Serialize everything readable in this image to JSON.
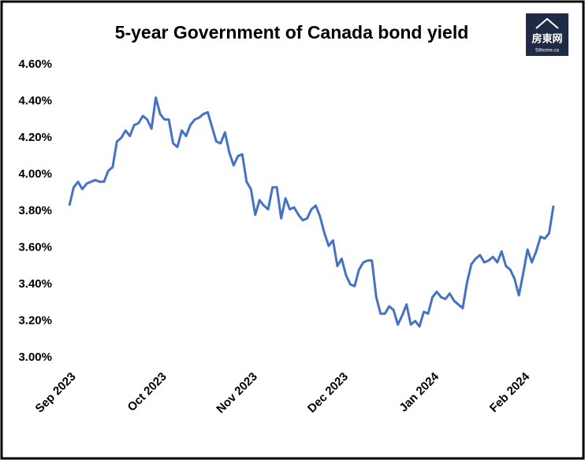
{
  "chart_data": {
    "type": "line",
    "title": "5-year Government of Canada bond yield",
    "logo": {
      "name": "房東网",
      "site": "58home.ca"
    },
    "color": "#4472c4",
    "categories": [
      "Sep 2023",
      null,
      null,
      null,
      null,
      null,
      null,
      null,
      null,
      null,
      null,
      null,
      null,
      null,
      null,
      null,
      null,
      null,
      null,
      null,
      null,
      "Oct 2023",
      null,
      null,
      null,
      null,
      null,
      null,
      null,
      null,
      null,
      null,
      null,
      null,
      null,
      null,
      null,
      null,
      null,
      null,
      null,
      null,
      "Nov 2023",
      null,
      null,
      null,
      null,
      null,
      null,
      null,
      null,
      null,
      null,
      null,
      null,
      null,
      null,
      null,
      null,
      null,
      null,
      null,
      null,
      "Dec 2023",
      null,
      null,
      null,
      null,
      null,
      null,
      null,
      null,
      null,
      null,
      null,
      null,
      null,
      null,
      null,
      null,
      null,
      null,
      null,
      null,
      "Jan 2024",
      null,
      null,
      null,
      null,
      null,
      null,
      null,
      null,
      null,
      null,
      null,
      null,
      null,
      null,
      null,
      null,
      null,
      null,
      null,
      null,
      "Feb 2024",
      null,
      null,
      null,
      null,
      null,
      null,
      null
    ],
    "values": [
      3.83,
      3.93,
      3.96,
      3.92,
      3.95,
      3.96,
      3.97,
      3.96,
      3.96,
      4.02,
      4.04,
      4.18,
      4.2,
      4.24,
      4.21,
      4.27,
      4.28,
      4.32,
      4.3,
      4.25,
      4.42,
      4.33,
      4.3,
      4.3,
      4.17,
      4.15,
      4.24,
      4.21,
      4.27,
      4.3,
      4.31,
      4.33,
      4.34,
      4.26,
      4.18,
      4.17,
      4.23,
      4.12,
      4.05,
      4.1,
      4.11,
      3.96,
      3.92,
      3.78,
      3.86,
      3.83,
      3.81,
      3.93,
      3.93,
      3.76,
      3.87,
      3.81,
      3.82,
      3.78,
      3.75,
      3.76,
      3.81,
      3.83,
      3.77,
      3.68,
      3.61,
      3.64,
      3.5,
      3.54,
      3.45,
      3.4,
      3.39,
      3.48,
      3.52,
      3.53,
      3.53,
      3.33,
      3.24,
      3.24,
      3.28,
      3.26,
      3.18,
      3.23,
      3.29,
      3.18,
      3.2,
      3.17,
      3.25,
      3.24,
      3.33,
      3.36,
      3.33,
      3.32,
      3.35,
      3.31,
      3.29,
      3.27,
      3.41,
      3.51,
      3.54,
      3.56,
      3.52,
      3.53,
      3.55,
      3.52,
      3.58,
      3.5,
      3.48,
      3.43,
      3.34,
      3.46,
      3.59,
      3.52,
      3.58,
      3.66,
      3.65,
      3.68,
      3.83
    ],
    "ylim": [
      3.0,
      4.6
    ],
    "yticks": [
      {
        "value": 3.0,
        "label": "3.00%"
      },
      {
        "value": 3.2,
        "label": "3.20%"
      },
      {
        "value": 3.4,
        "label": "3.40%"
      },
      {
        "value": 3.6,
        "label": "3.60%"
      },
      {
        "value": 3.8,
        "label": "3.80%"
      },
      {
        "value": 4.0,
        "label": "4.00%"
      },
      {
        "value": 4.2,
        "label": "4.20%"
      },
      {
        "value": 4.4,
        "label": "4.40%"
      },
      {
        "value": 4.6,
        "label": "4.60%"
      }
    ]
  }
}
